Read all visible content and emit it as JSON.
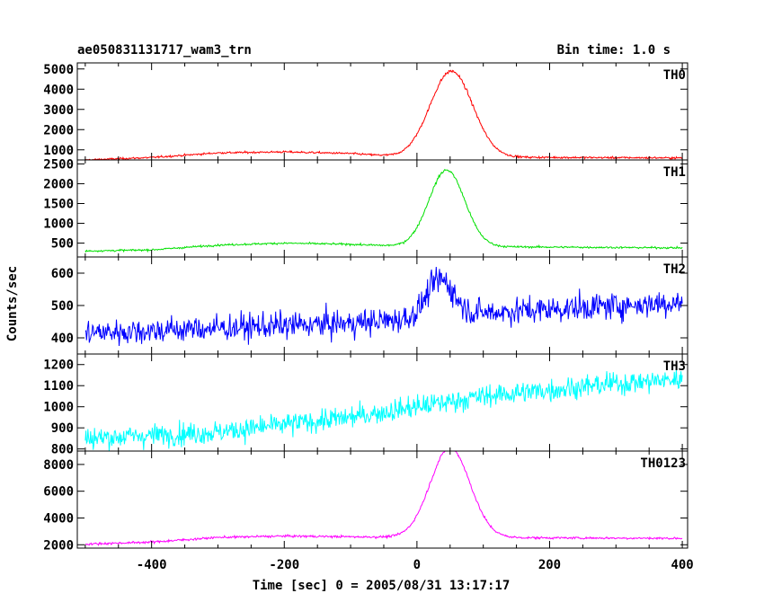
{
  "chart_data": {
    "type": "line",
    "title": "ae050831131717_wam3_trn",
    "bin_time": "Bin time: 1.0 s",
    "xlabel": "Time [sec] 0 = 2005/08/31 13:17:17",
    "ylabel": "Counts/sec",
    "xlim": [
      -512,
      408
    ],
    "x_ticks": [
      -400,
      -200,
      0,
      200,
      400
    ],
    "panels": [
      {
        "name": "TH0",
        "color": "#ff0000",
        "ylim": [
          500,
          5300
        ],
        "y_ticks": [
          1000,
          2000,
          3000,
          4000,
          5000
        ],
        "shape": {
          "baseline": [
            [
              -500,
              500
            ],
            [
              -400,
              620
            ],
            [
              -300,
              850
            ],
            [
              -200,
              900
            ],
            [
              -100,
              820
            ],
            [
              -20,
              650
            ],
            [
              0,
              650
            ],
            [
              400,
              600
            ]
          ],
          "peak": {
            "center": 52,
            "height": 4250,
            "width": 32
          },
          "noise": 40
        }
      },
      {
        "name": "TH1",
        "color": "#00e000",
        "ylim": [
          150,
          2600
        ],
        "y_ticks": [
          500,
          1000,
          1500,
          2000,
          2500
        ],
        "shape": {
          "baseline": [
            [
              -500,
              300
            ],
            [
              -400,
              330
            ],
            [
              -300,
              450
            ],
            [
              -200,
              500
            ],
            [
              -100,
              470
            ],
            [
              -20,
              420
            ],
            [
              0,
              420
            ],
            [
              400,
              380
            ]
          ],
          "peak": {
            "center": 45,
            "height": 1930,
            "width": 27
          },
          "noise": 20
        }
      },
      {
        "name": "TH2",
        "color": "#0000ff",
        "ylim": [
          350,
          650
        ],
        "y_ticks": [
          400,
          500,
          600
        ],
        "shape": {
          "baseline": [
            [
              -500,
              415
            ],
            [
              -300,
              430
            ],
            [
              -100,
              445
            ],
            [
              0,
              460
            ],
            [
              30,
              470
            ],
            [
              400,
              510
            ]
          ],
          "peak": {
            "center": 35,
            "height": 110,
            "width": 20
          },
          "noise": 35
        }
      },
      {
        "name": "TH3",
        "color": "#00ffff",
        "ylim": [
          790,
          1250
        ],
        "y_ticks": [
          800,
          900,
          1000,
          1100,
          1200
        ],
        "shape": {
          "baseline": [
            [
              -500,
              850
            ],
            [
              -300,
              880
            ],
            [
              -100,
              950
            ],
            [
              0,
              1000
            ],
            [
              100,
              1050
            ],
            [
              300,
              1110
            ],
            [
              400,
              1130
            ]
          ],
          "peak": {
            "center": 0,
            "height": 0,
            "width": 1
          },
          "noise": 45
        }
      },
      {
        "name": "TH0123",
        "color": "#ff00ff",
        "ylim": [
          1750,
          9000
        ],
        "y_ticks": [
          2000,
          4000,
          6000,
          8000
        ],
        "shape": {
          "baseline": [
            [
              -500,
              2050
            ],
            [
              -400,
              2200
            ],
            [
              -300,
              2550
            ],
            [
              -200,
              2650
            ],
            [
              -100,
              2600
            ],
            [
              -20,
              2550
            ],
            [
              0,
              2550
            ],
            [
              400,
              2480
            ]
          ],
          "peak": {
            "center": 50,
            "height": 6700,
            "width": 30
          },
          "noise": 70
        }
      }
    ]
  }
}
